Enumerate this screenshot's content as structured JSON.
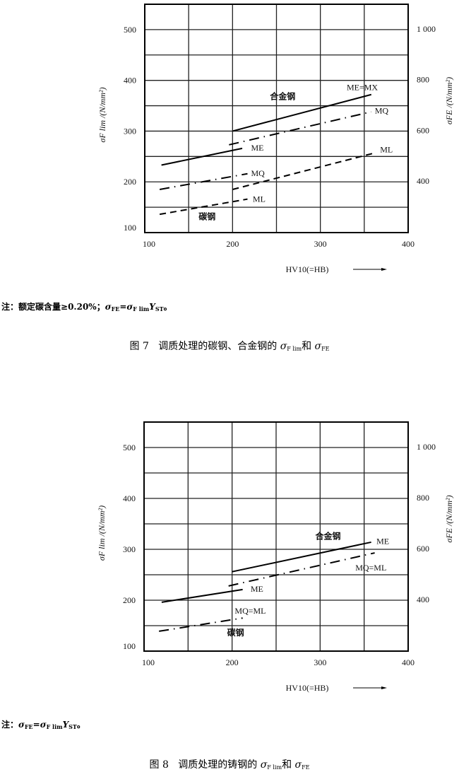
{
  "figures": [
    {
      "note": {
        "prefix": "注：",
        "text": "额定碳含量≥0.20%；",
        "s1": "σ",
        "s1sub": "FE",
        "eq": "=σ",
        "s2sub": "F lim",
        "y": "Y",
        "ysub": "ST",
        "end": "。"
      },
      "caption": {
        "label": "图 7",
        "text": "调质处理的碳钢、合金钢的",
        "s1": "σ",
        "s1sub": "F lim",
        "and": "和",
        "s2": "σ",
        "s2sub": "FE"
      }
    },
    {
      "note": {
        "prefix": "注：",
        "text": "",
        "s1": "σ",
        "s1sub": "FE",
        "eq": "=σ",
        "s2sub": "F lim",
        "y": "Y",
        "ysub": "ST",
        "end": "。"
      },
      "caption": {
        "label": "图 8",
        "text": "调质处理的铸钢的",
        "s1": "σ",
        "s1sub": "F lim",
        "and": "和",
        "s2": "σ",
        "s2sub": "FE"
      }
    }
  ],
  "chart_data": [
    {
      "type": "line",
      "xlabel": "HV10(=HB)",
      "ylabel": "σF lim /(N/mm²)",
      "ylabel_right": "σFE /(N/mm²)",
      "xlim": [
        100,
        400
      ],
      "ylim": [
        100,
        550
      ],
      "xticks": [
        100,
        200,
        300,
        400
      ],
      "yticks": [
        100,
        200,
        300,
        400,
        500
      ],
      "yticks_right": [
        {
          "at": 200,
          "label": "400"
        },
        {
          "at": 300,
          "label": "600"
        },
        {
          "at": 400,
          "label": "800"
        },
        {
          "at": 500,
          "label": "1 000"
        }
      ],
      "grid": {
        "x_step": 50,
        "y_step": 50
      },
      "series": [
        {
          "name": "ME",
          "group": "碳钢",
          "style": "solid",
          "points": [
            [
              119,
              233
            ],
            [
              211,
              266
            ]
          ]
        },
        {
          "name": "MQ",
          "group": "碳钢",
          "style": "dashdot",
          "points": [
            [
              117,
              185
            ],
            [
              217,
              216
            ]
          ]
        },
        {
          "name": "ML",
          "group": "碳钢",
          "style": "dashed",
          "points": [
            [
              117,
              136
            ],
            [
              217,
              166
            ]
          ]
        },
        {
          "name": "ME=MX",
          "group": "合金钢",
          "style": "solid",
          "points": [
            [
              200,
              300
            ],
            [
              358,
              372
            ]
          ]
        },
        {
          "name": "MQ",
          "group": "合金钢",
          "style": "dashdot",
          "points": [
            [
              196,
              273
            ],
            [
              358,
              338
            ]
          ]
        },
        {
          "name": "ML",
          "group": "合金钢",
          "style": "dashed",
          "points": [
            [
              200,
              185
            ],
            [
              362,
              257
            ]
          ]
        }
      ],
      "group_labels": [
        "碳钢",
        "合金钢"
      ]
    },
    {
      "type": "line",
      "xlabel": "HV10(=HB)",
      "ylabel": "σF lim /(N/mm²)",
      "ylabel_right": "σFE /(N/mm²)",
      "xlim": [
        100,
        400
      ],
      "ylim": [
        100,
        550
      ],
      "xticks": [
        100,
        200,
        300,
        400
      ],
      "yticks": [
        100,
        200,
        300,
        400,
        500
      ],
      "yticks_right": [
        {
          "at": 200,
          "label": "400"
        },
        {
          "at": 300,
          "label": "600"
        },
        {
          "at": 400,
          "label": "800"
        },
        {
          "at": 500,
          "label": "1 000"
        }
      ],
      "grid": {
        "x_step": 50,
        "y_step": 50
      },
      "series": [
        {
          "name": "ME",
          "group": "碳钢",
          "style": "solid",
          "points": [
            [
              120,
              196
            ],
            [
              212,
              221
            ]
          ]
        },
        {
          "name": "MQ=ML",
          "group": "碳钢",
          "style": "dashdot",
          "points": [
            [
              117,
              139
            ],
            [
              212,
              165
            ]
          ]
        },
        {
          "name": "ME",
          "group": "合金钢",
          "style": "solid",
          "points": [
            [
              200,
              256
            ],
            [
              358,
              314
            ]
          ]
        },
        {
          "name": "MQ=ML",
          "group": "合金钢",
          "style": "dashdot",
          "points": [
            [
              196,
              228
            ],
            [
              362,
              293
            ]
          ]
        }
      ],
      "group_labels": [
        "碳钢",
        "合金钢"
      ]
    }
  ]
}
